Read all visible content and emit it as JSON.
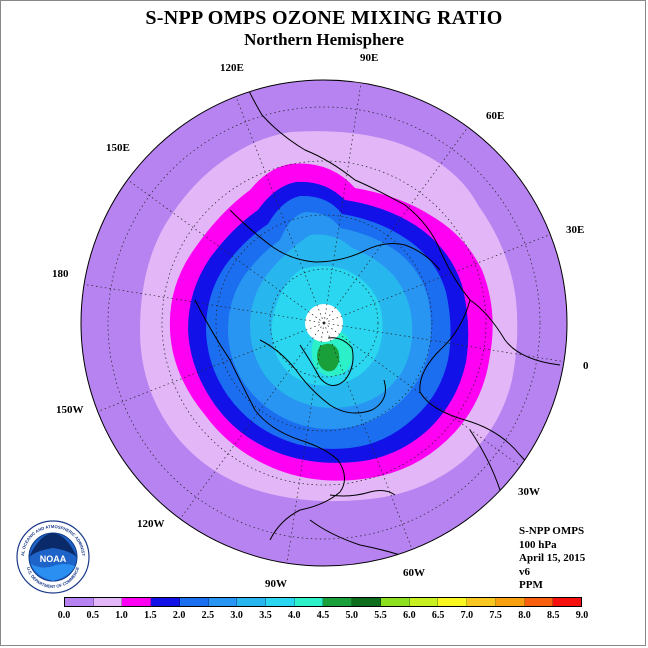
{
  "title": "S-NPP OMPS OZONE MIXING RATIO",
  "subtitle": "Northern Hemisphere",
  "longitude_labels": [
    "90E",
    "60E",
    "30E",
    "0",
    "30W",
    "60W",
    "90W",
    "120W",
    "150W",
    "180",
    "150E",
    "120E"
  ],
  "info": {
    "instrument": "S-NPP OMPS",
    "level": "100 hPa",
    "date": "April 15, 2015",
    "version": "v6",
    "units": "PPM"
  },
  "colorbar": {
    "ticks": [
      "0.0",
      "0.5",
      "1.0",
      "1.5",
      "2.0",
      "2.5",
      "3.0",
      "3.5",
      "4.0",
      "4.5",
      "5.0",
      "5.5",
      "6.0",
      "6.5",
      "7.0",
      "7.5",
      "8.0",
      "8.5",
      "9.0"
    ],
    "colors": [
      "#b683f0",
      "#e2b6f7",
      "#ff00f2",
      "#1212e8",
      "#1c6ef0",
      "#2895f2",
      "#27b7ee",
      "#2ad6f0",
      "#2bf0c8",
      "#1aa03a",
      "#0e6e1e",
      "#8ce020",
      "#c8f020",
      "#f8f820",
      "#f8c820",
      "#f8a010",
      "#f86010",
      "#f81010",
      "#9a5a32"
    ]
  },
  "logo_text": {
    "center": "NOAA",
    "ring_top": "NATIONAL OCEANIC AND ATMOSPHERIC ADMINISTRATION",
    "ring_bottom": "U.S. DEPARTMENT OF COMMERCE"
  }
}
